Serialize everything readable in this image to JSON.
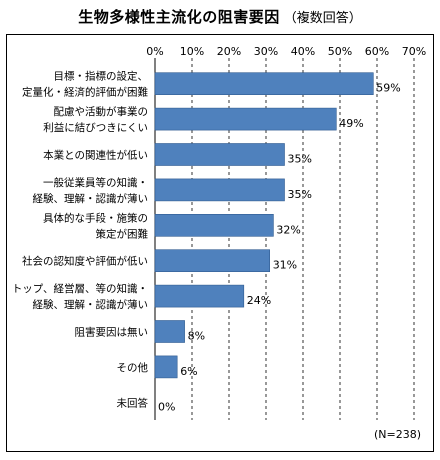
{
  "header": {
    "title": "生物多様性主流化の阻害要因",
    "subtitle": "（複数回答）"
  },
  "note": "(N=238)",
  "colors": {
    "bar": "#4f81bd",
    "bar_stroke": "#2f5b8f",
    "grid": "#000000"
  },
  "chart_data": {
    "type": "bar",
    "orientation": "horizontal",
    "title": "生物多様性主流化の阻害要因",
    "subtitle": "（複数回答）",
    "categories": [
      [
        "目標・指標の設定、",
        "定量化・経済的評価が困難"
      ],
      [
        "配慮や活動が事業の",
        "利益に結びつきにくい"
      ],
      [
        "本業との関連性が低い"
      ],
      [
        "一般従業員等の知識・",
        "経験、理解・認識が薄い"
      ],
      [
        "具体的な手段・施策の",
        "策定が困難"
      ],
      [
        "社会の認知度や評価が低い"
      ],
      [
        "トップ、経営層、等の知識・",
        "経験、理解・認識が薄い"
      ],
      [
        "阻害要因は無い"
      ],
      [
        "その他"
      ],
      [
        "未回答"
      ]
    ],
    "values": [
      59,
      49,
      35,
      35,
      32,
      31,
      24,
      8,
      6,
      0
    ],
    "value_labels": [
      "59%",
      "49%",
      "35%",
      "35%",
      "32%",
      "31%",
      "24%",
      "8%",
      "6%",
      "0%"
    ],
    "xlim": [
      0,
      70
    ],
    "ticks": [
      0,
      10,
      20,
      30,
      40,
      50,
      60,
      70
    ],
    "tick_labels": [
      "0%",
      "10%",
      "20%",
      "30%",
      "40%",
      "50%",
      "60%",
      "70%"
    ],
    "grid": "vertical dashed",
    "legend": "none",
    "sample_note": "(N=238)"
  }
}
